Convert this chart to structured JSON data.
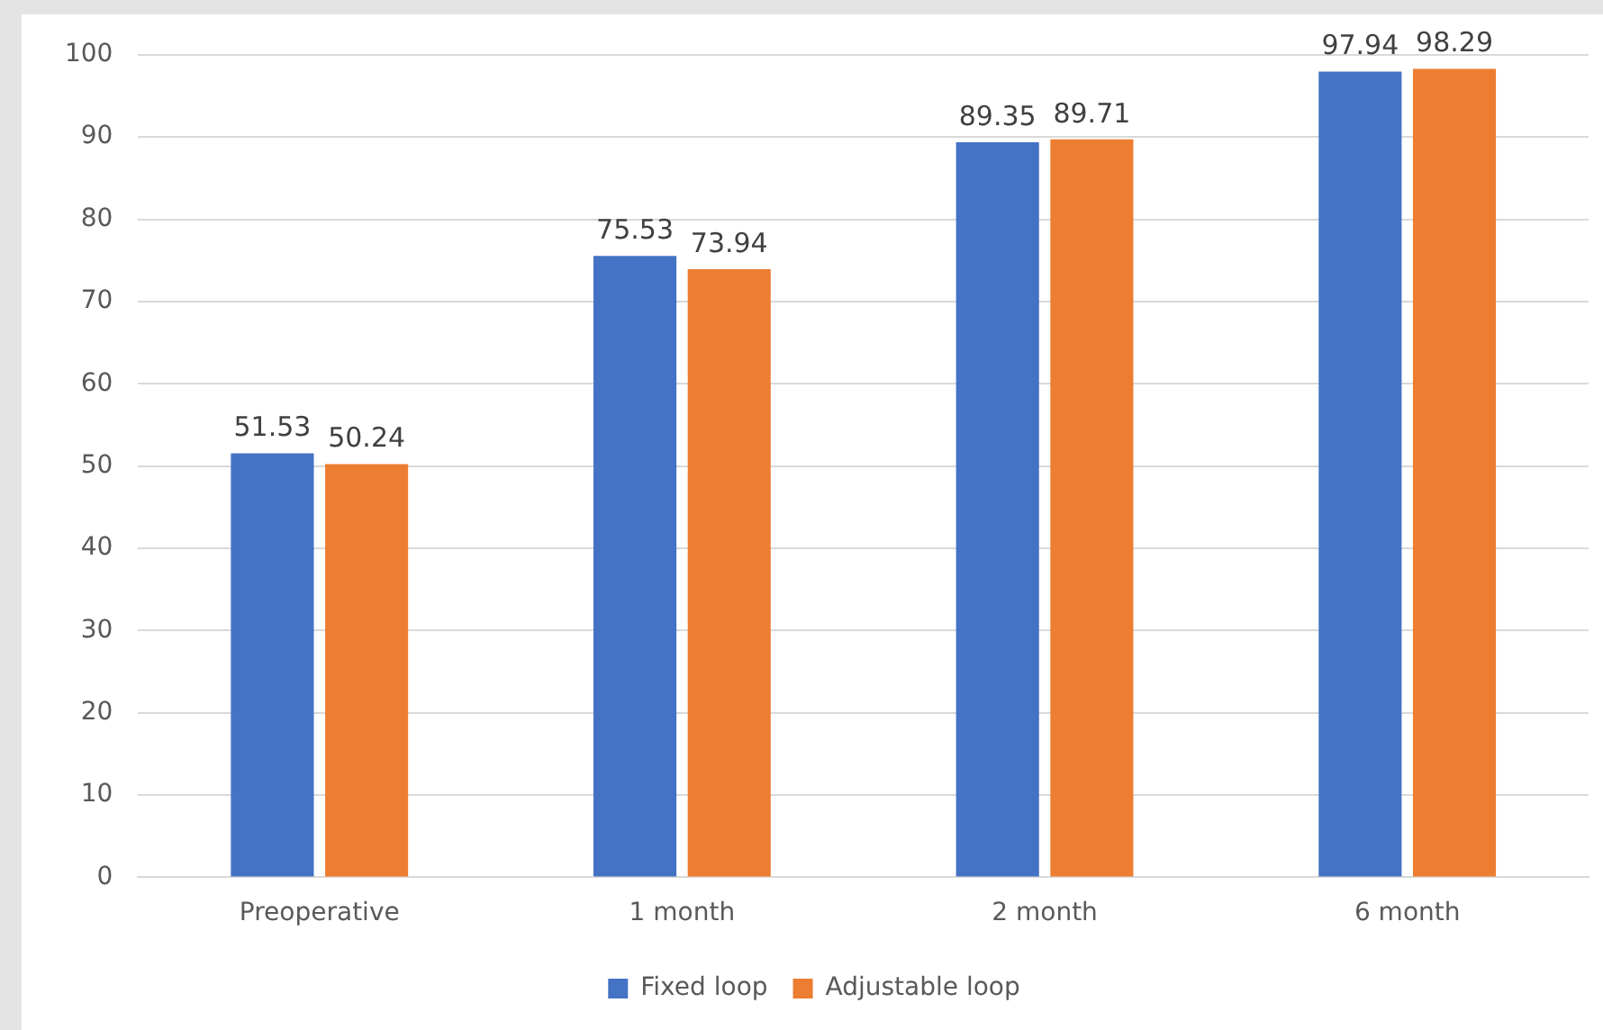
{
  "chart_data": {
    "type": "bar",
    "categories": [
      "Preoperative",
      "1 month",
      "2 month",
      "6 month"
    ],
    "series": [
      {
        "name": "Fixed loop",
        "color": "#4472c4",
        "values": [
          51.53,
          75.53,
          89.35,
          97.94
        ]
      },
      {
        "name": "Adjustable loop",
        "color": "#ed7d31",
        "values": [
          50.24,
          73.94,
          89.71,
          98.29
        ]
      }
    ],
    "ylim": [
      0,
      100
    ],
    "yticks": [
      0,
      10,
      20,
      30,
      40,
      50,
      60,
      70,
      80,
      90,
      100
    ],
    "grid": "y",
    "legend": "bottom",
    "data_labels": true
  }
}
